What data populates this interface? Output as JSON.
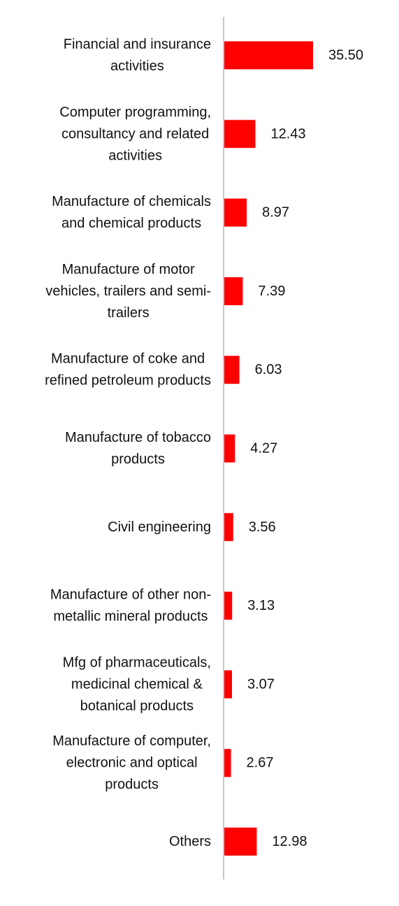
{
  "chart_data": {
    "type": "bar",
    "orientation": "horizontal",
    "categories": [
      "Financial and insurance activities",
      "Computer programming, consultancy and related activities",
      "Manufacture of chemicals and chemical products",
      "Manufacture of motor vehicles, trailers and semi-trailers",
      "Manufacture of coke and refined petroleum products",
      "Manufacture of tobacco products",
      "Civil engineering",
      "Manufacture of other non-metallic mineral products",
      "Mfg of pharmaceuticals, medicinal chemical & botanical products",
      "Manufacture of computer, electronic and optical products",
      "Others"
    ],
    "label_lines": [
      [
        "Financial and insurance",
        "activities"
      ],
      [
        "Computer programming,",
        "consultancy and related",
        "activities"
      ],
      [
        "Manufacture of chemicals",
        "and chemical products"
      ],
      [
        "Manufacture of motor",
        "vehicles, trailers and semi-",
        "trailers"
      ],
      [
        "Manufacture of coke and",
        "refined petroleum products"
      ],
      [
        "Manufacture of tobacco",
        "products"
      ],
      [
        "Civil engineering"
      ],
      [
        "Manufacture of other non-",
        "metallic mineral products"
      ],
      [
        "Mfg of pharmaceuticals,",
        "medicinal chemical &",
        "botanical products"
      ],
      [
        "Manufacture of computer,",
        "electronic and optical",
        "products"
      ],
      [
        "Others"
      ]
    ],
    "values": [
      35.5,
      12.43,
      8.97,
      7.39,
      6.03,
      4.27,
      3.56,
      3.13,
      3.07,
      2.67,
      12.98
    ],
    "value_labels": [
      "35.50",
      "12.43",
      "8.97",
      "7.39",
      "6.03",
      "4.27",
      "3.56",
      "3.13",
      "3.07",
      "2.67",
      "12.98"
    ],
    "title": "",
    "xlabel": "",
    "ylabel": "",
    "xlim": [
      0,
      35.5
    ],
    "grid": false,
    "legend": "none",
    "bar_color": "#ff0000",
    "axis_color": "#c8c8c8"
  }
}
